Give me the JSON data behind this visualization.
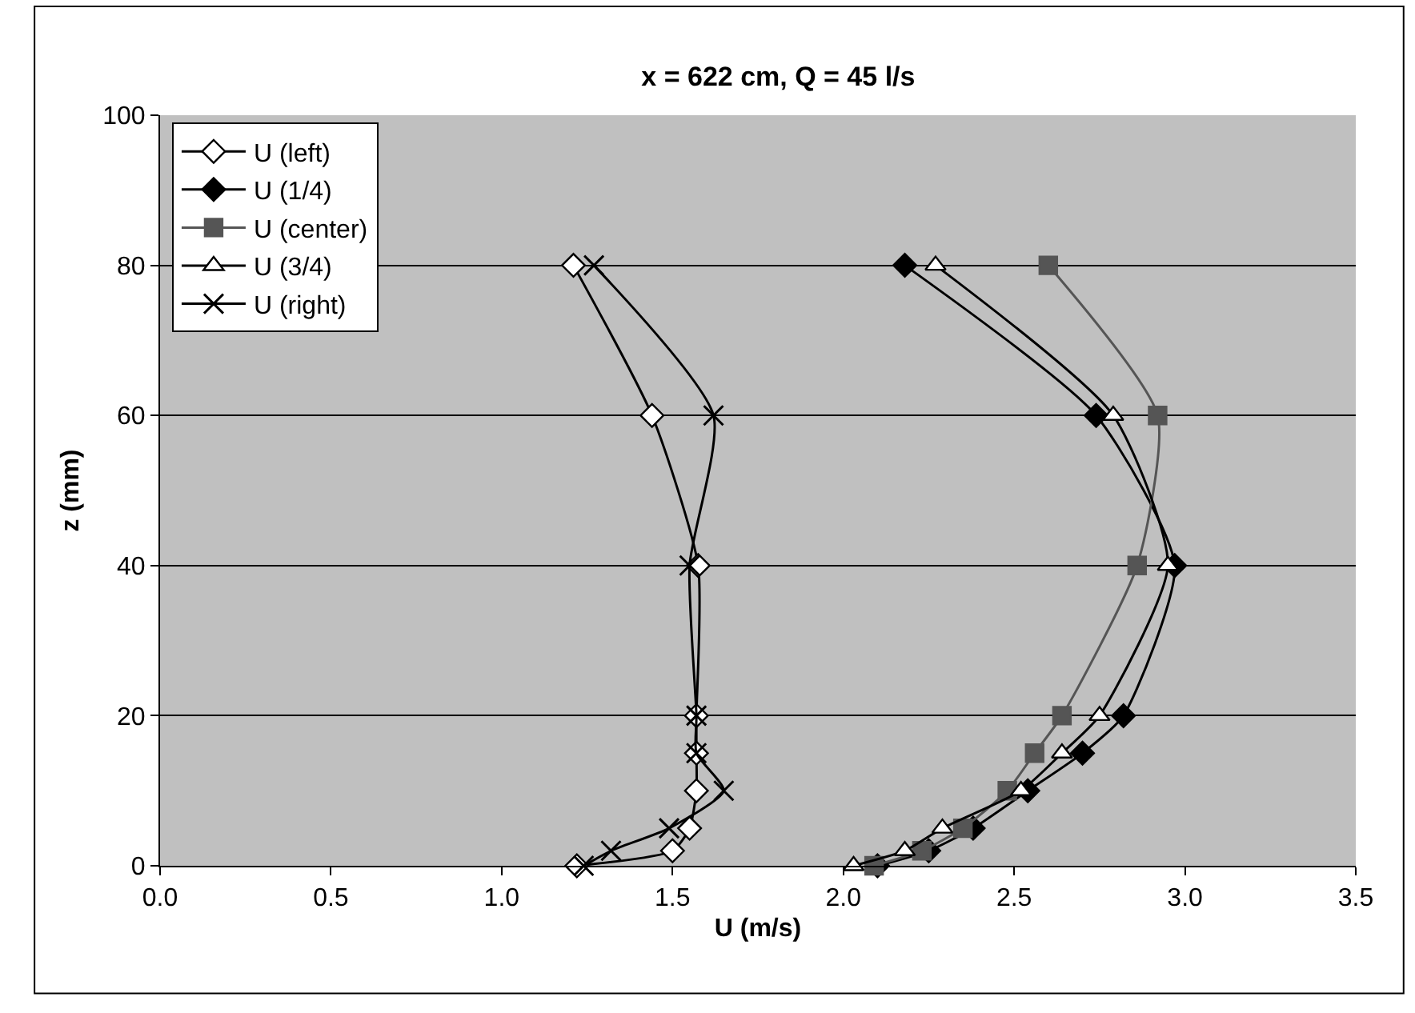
{
  "chart_data": {
    "type": "line",
    "title": "x = 622 cm, Q = 45 l/s",
    "xlabel": "U (m/s)",
    "ylabel": "z (mm)",
    "xlim": [
      0,
      3.5
    ],
    "xticks": [
      {
        "value": 0,
        "label": "0.0"
      },
      {
        "value": 0.5,
        "label": "0.5"
      },
      {
        "value": 1,
        "label": "1.0"
      },
      {
        "value": 1.5,
        "label": "1.5"
      },
      {
        "value": 2,
        "label": "2.0"
      },
      {
        "value": 2.5,
        "label": "2.5"
      },
      {
        "value": 3,
        "label": "3.0"
      },
      {
        "value": 3.5,
        "label": "3.5"
      }
    ],
    "ylim": [
      0,
      100
    ],
    "yticks": [
      0,
      20,
      40,
      60,
      80,
      100
    ],
    "grid": "y",
    "legend": "top left",
    "series": [
      {
        "name": "U (left)",
        "color": "#ffffff",
        "marker": "diamond",
        "x": [
          1.22,
          1.5,
          1.55,
          1.57,
          1.57,
          1.57,
          1.575,
          1.44,
          1.21
        ],
        "values": [
          0,
          2,
          5,
          10,
          15,
          20,
          40,
          60,
          80
        ]
      },
      {
        "name": "U (1/4)",
        "color": "#000000",
        "marker": "diamond",
        "x": [
          2.1,
          2.25,
          2.38,
          2.54,
          2.7,
          2.82,
          2.97,
          2.74,
          2.18
        ],
        "values": [
          0,
          2,
          5,
          10,
          15,
          20,
          40,
          60,
          80
        ]
      },
      {
        "name": "U (center)",
        "color": "#555555",
        "marker": "square",
        "x": [
          2.09,
          2.23,
          2.35,
          2.48,
          2.56,
          2.64,
          2.86,
          2.92,
          2.6
        ],
        "values": [
          0,
          2,
          5,
          10,
          15,
          20,
          40,
          60,
          80
        ]
      },
      {
        "name": "U (3/4)",
        "color": "#ffffff",
        "marker": "triangle",
        "x": [
          2.03,
          2.18,
          2.29,
          2.52,
          2.64,
          2.75,
          2.95,
          2.79,
          2.27
        ],
        "values": [
          0,
          2,
          5,
          10,
          15,
          20,
          40,
          60,
          80
        ]
      },
      {
        "name": "U (right)",
        "color": "#000000",
        "marker": "cross",
        "x": [
          1.24,
          1.32,
          1.49,
          1.65,
          1.57,
          1.57,
          1.55,
          1.62,
          1.27
        ],
        "values": [
          0,
          2,
          5,
          10,
          15,
          20,
          40,
          60,
          80
        ]
      }
    ]
  }
}
